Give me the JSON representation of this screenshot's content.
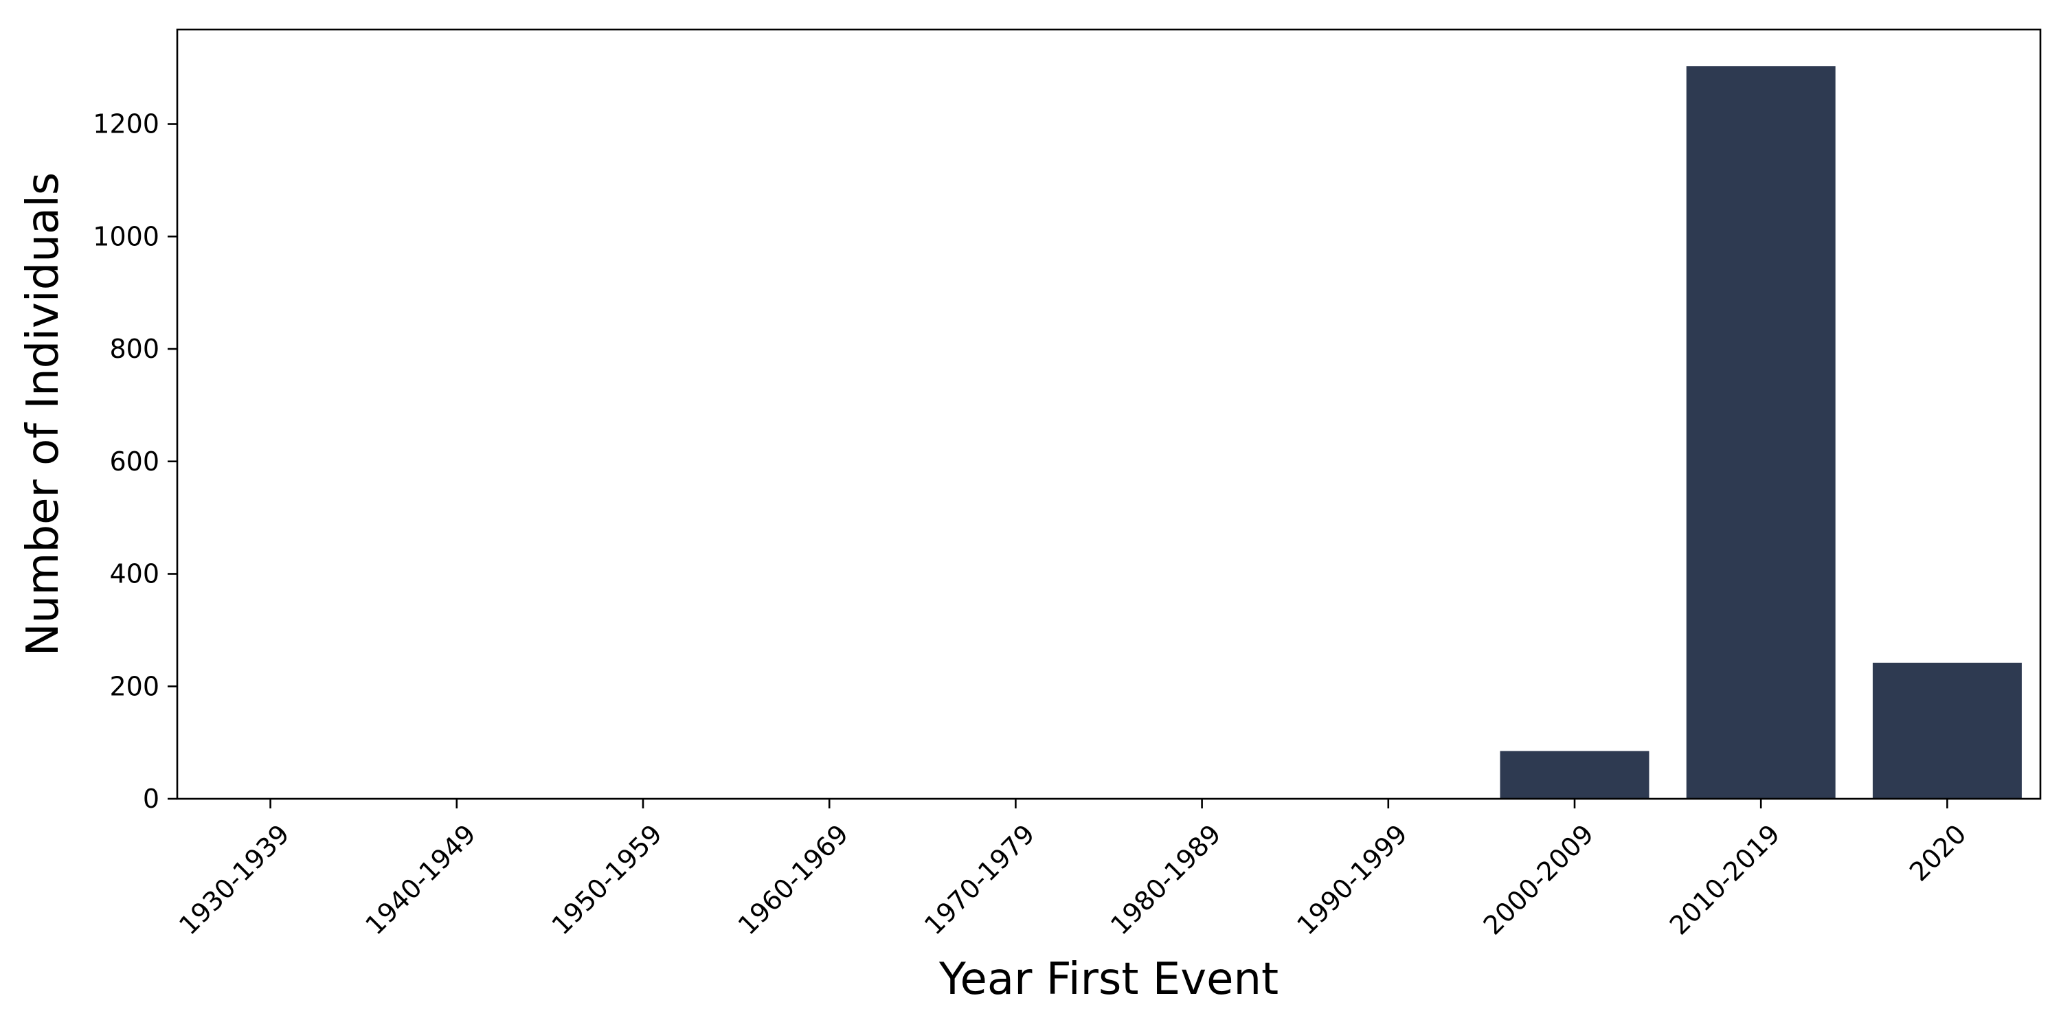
{
  "chart_data": {
    "type": "bar",
    "categories": [
      "1930-1939",
      "1940-1949",
      "1950-1959",
      "1960-1969",
      "1970-1979",
      "1980-1989",
      "1990-1999",
      "2000-2009",
      "2010-2019",
      "2020"
    ],
    "values": [
      0,
      0,
      0,
      0,
      0,
      0,
      0,
      85,
      1303,
      242
    ],
    "title": "",
    "xlabel": "Year First Event",
    "ylabel": "Number of Individuals",
    "ylim": [
      0,
      1368
    ],
    "yticks": [
      0,
      200,
      400,
      600,
      800,
      1000,
      1200
    ],
    "grid": false,
    "legend": "none",
    "bar_color": "#2e3a51",
    "axis_color": "#000000"
  }
}
